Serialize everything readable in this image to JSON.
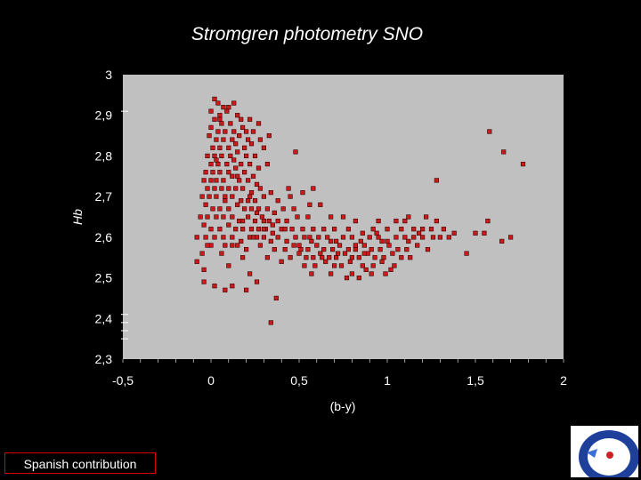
{
  "slide": {
    "title": "Stromgren photometry SNO",
    "credit": "Spanish contribution"
  },
  "colors": {
    "background": "#000000",
    "plot_area": "#c0c0c0",
    "marker_fill": "#cc1a1a",
    "marker_stroke": "#3a0000",
    "credit_border": "#dd0000"
  },
  "logo": {
    "name": "institute-seal"
  },
  "chart_data": {
    "type": "scatter",
    "title": "Stromgren photometry SNO",
    "xlabel": "(b-y)",
    "ylabel": "Hb",
    "xlim": [
      -0.5,
      2
    ],
    "ylim": [
      2.3,
      3
    ],
    "x_ticks": [
      "-0,5",
      "0",
      "0,5",
      "1",
      "1,5",
      "2"
    ],
    "y_ticks": [
      "3",
      "2,9",
      "2,8",
      "2,7",
      "2,6",
      "2,5",
      "2,4",
      "2,3"
    ],
    "grid": false,
    "legend": "none",
    "series": [
      {
        "points": [
          [
            0.02,
            2.94
          ],
          [
            0.04,
            2.93
          ],
          [
            0.07,
            2.92
          ],
          [
            0.13,
            2.93
          ],
          [
            0.0,
            2.91
          ],
          [
            0.05,
            2.9
          ],
          [
            0.09,
            2.91
          ],
          [
            0.15,
            2.9
          ],
          [
            0.02,
            2.89
          ],
          [
            0.06,
            2.88
          ],
          [
            0.11,
            2.88
          ],
          [
            0.17,
            2.89
          ],
          [
            0.22,
            2.89
          ],
          [
            0.27,
            2.88
          ],
          [
            0.0,
            2.87
          ],
          [
            0.04,
            2.86
          ],
          [
            0.08,
            2.86
          ],
          [
            0.13,
            2.86
          ],
          [
            0.18,
            2.87
          ],
          [
            0.24,
            2.86
          ],
          [
            -0.01,
            2.85
          ],
          [
            0.03,
            2.84
          ],
          [
            0.07,
            2.84
          ],
          [
            0.12,
            2.84
          ],
          [
            0.16,
            2.85
          ],
          [
            0.21,
            2.84
          ],
          [
            0.28,
            2.84
          ],
          [
            0.33,
            2.85
          ],
          [
            0.01,
            2.82
          ],
          [
            0.05,
            2.82
          ],
          [
            0.1,
            2.82
          ],
          [
            0.14,
            2.83
          ],
          [
            0.19,
            2.82
          ],
          [
            0.23,
            2.83
          ],
          [
            0.3,
            2.82
          ],
          [
            -0.02,
            2.8
          ],
          [
            0.02,
            2.8
          ],
          [
            0.06,
            2.8
          ],
          [
            0.11,
            2.8
          ],
          [
            0.15,
            2.81
          ],
          [
            0.2,
            2.8
          ],
          [
            0.25,
            2.8
          ],
          [
            0.0,
            2.78
          ],
          [
            0.04,
            2.78
          ],
          [
            0.09,
            2.78
          ],
          [
            0.13,
            2.79
          ],
          [
            0.17,
            2.78
          ],
          [
            0.22,
            2.78
          ],
          [
            0.27,
            2.77
          ],
          [
            0.32,
            2.78
          ],
          [
            -0.03,
            2.76
          ],
          [
            0.01,
            2.76
          ],
          [
            0.05,
            2.76
          ],
          [
            0.1,
            2.76
          ],
          [
            0.14,
            2.77
          ],
          [
            0.19,
            2.76
          ],
          [
            0.24,
            2.75
          ],
          [
            -0.04,
            2.74
          ],
          [
            0.0,
            2.74
          ],
          [
            0.03,
            2.74
          ],
          [
            0.07,
            2.74
          ],
          [
            0.12,
            2.75
          ],
          [
            0.16,
            2.74
          ],
          [
            0.21,
            2.74
          ],
          [
            0.26,
            2.73
          ],
          [
            -0.02,
            2.72
          ],
          [
            0.02,
            2.72
          ],
          [
            0.06,
            2.72
          ],
          [
            0.1,
            2.72
          ],
          [
            0.14,
            2.72
          ],
          [
            0.18,
            2.72
          ],
          [
            0.23,
            2.71
          ],
          [
            0.28,
            2.72
          ],
          [
            0.34,
            2.71
          ],
          [
            -0.05,
            2.7
          ],
          [
            -0.01,
            2.7
          ],
          [
            0.03,
            2.7
          ],
          [
            0.08,
            2.69
          ],
          [
            0.12,
            2.7
          ],
          [
            0.17,
            2.69
          ],
          [
            0.21,
            2.69
          ],
          [
            0.25,
            2.69
          ],
          [
            0.3,
            2.7
          ],
          [
            0.38,
            2.69
          ],
          [
            0.45,
            2.7
          ],
          [
            0.52,
            2.71
          ],
          [
            -0.03,
            2.68
          ],
          [
            0.01,
            2.67
          ],
          [
            0.05,
            2.67
          ],
          [
            0.1,
            2.67
          ],
          [
            0.15,
            2.68
          ],
          [
            0.19,
            2.67
          ],
          [
            0.23,
            2.67
          ],
          [
            0.27,
            2.67
          ],
          [
            0.32,
            2.67
          ],
          [
            0.36,
            2.66
          ],
          [
            0.41,
            2.67
          ],
          [
            0.47,
            2.67
          ],
          [
            0.56,
            2.68
          ],
          [
            0.62,
            2.68
          ],
          [
            -0.06,
            2.65
          ],
          [
            -0.02,
            2.65
          ],
          [
            0.03,
            2.65
          ],
          [
            0.07,
            2.65
          ],
          [
            0.12,
            2.65
          ],
          [
            0.16,
            2.64
          ],
          [
            0.21,
            2.65
          ],
          [
            0.25,
            2.64
          ],
          [
            0.29,
            2.65
          ],
          [
            0.33,
            2.64
          ],
          [
            0.38,
            2.64
          ],
          [
            0.43,
            2.64
          ],
          [
            0.49,
            2.65
          ],
          [
            0.55,
            2.65
          ],
          [
            0.68,
            2.65
          ],
          [
            0.75,
            2.65
          ],
          [
            0.82,
            2.64
          ],
          [
            0.95,
            2.64
          ],
          [
            1.05,
            2.64
          ],
          [
            1.12,
            2.65
          ],
          [
            1.22,
            2.65
          ],
          [
            1.28,
            2.64
          ],
          [
            -0.04,
            2.63
          ],
          [
            0.0,
            2.62
          ],
          [
            0.05,
            2.62
          ],
          [
            0.1,
            2.63
          ],
          [
            0.14,
            2.62
          ],
          [
            0.18,
            2.62
          ],
          [
            0.23,
            2.62
          ],
          [
            0.27,
            2.62
          ],
          [
            0.31,
            2.62
          ],
          [
            0.35,
            2.61
          ],
          [
            0.4,
            2.62
          ],
          [
            0.46,
            2.62
          ],
          [
            0.52,
            2.62
          ],
          [
            0.58,
            2.62
          ],
          [
            0.64,
            2.62
          ],
          [
            0.7,
            2.62
          ],
          [
            0.78,
            2.62
          ],
          [
            0.86,
            2.61
          ],
          [
            0.92,
            2.62
          ],
          [
            1.0,
            2.62
          ],
          [
            1.08,
            2.62
          ],
          [
            1.15,
            2.62
          ],
          [
            1.2,
            2.62
          ],
          [
            1.25,
            2.62
          ],
          [
            1.32,
            2.62
          ],
          [
            -0.08,
            2.6
          ],
          [
            -0.03,
            2.6
          ],
          [
            0.02,
            2.6
          ],
          [
            0.07,
            2.6
          ],
          [
            0.12,
            2.6
          ],
          [
            0.17,
            2.59
          ],
          [
            0.22,
            2.6
          ],
          [
            0.26,
            2.6
          ],
          [
            0.3,
            2.6
          ],
          [
            0.34,
            2.59
          ],
          [
            0.38,
            2.6
          ],
          [
            0.43,
            2.59
          ],
          [
            0.48,
            2.6
          ],
          [
            0.53,
            2.6
          ],
          [
            0.57,
            2.59
          ],
          [
            0.61,
            2.6
          ],
          [
            0.66,
            2.6
          ],
          [
            0.71,
            2.59
          ],
          [
            0.75,
            2.6
          ],
          [
            0.8,
            2.6
          ],
          [
            0.85,
            2.59
          ],
          [
            0.9,
            2.6
          ],
          [
            0.95,
            2.6
          ],
          [
            1.0,
            2.59
          ],
          [
            1.05,
            2.6
          ],
          [
            1.1,
            2.6
          ],
          [
            1.15,
            2.6
          ],
          [
            1.2,
            2.6
          ],
          [
            1.26,
            2.6
          ],
          [
            1.35,
            2.6
          ],
          [
            1.55,
            2.61
          ],
          [
            0.0,
            2.58
          ],
          [
            0.08,
            2.58
          ],
          [
            0.15,
            2.58
          ],
          [
            0.2,
            2.57
          ],
          [
            0.28,
            2.58
          ],
          [
            0.36,
            2.57
          ],
          [
            0.42,
            2.57
          ],
          [
            0.47,
            2.58
          ],
          [
            0.51,
            2.57
          ],
          [
            0.55,
            2.57
          ],
          [
            0.6,
            2.58
          ],
          [
            0.64,
            2.57
          ],
          [
            0.69,
            2.57
          ],
          [
            0.73,
            2.58
          ],
          [
            0.78,
            2.57
          ],
          [
            0.82,
            2.57
          ],
          [
            0.87,
            2.58
          ],
          [
            0.91,
            2.57
          ],
          [
            0.96,
            2.57
          ],
          [
            1.01,
            2.58
          ],
          [
            1.06,
            2.57
          ],
          [
            1.11,
            2.57
          ],
          [
            1.17,
            2.58
          ],
          [
            1.23,
            2.57
          ],
          [
            1.65,
            2.59
          ],
          [
            -0.05,
            2.56
          ],
          [
            0.06,
            2.56
          ],
          [
            0.18,
            2.55
          ],
          [
            0.32,
            2.55
          ],
          [
            0.45,
            2.55
          ],
          [
            0.5,
            2.56
          ],
          [
            0.54,
            2.55
          ],
          [
            0.58,
            2.55
          ],
          [
            0.62,
            2.56
          ],
          [
            0.67,
            2.55
          ],
          [
            0.71,
            2.55
          ],
          [
            0.76,
            2.56
          ],
          [
            0.8,
            2.55
          ],
          [
            0.84,
            2.55
          ],
          [
            0.89,
            2.56
          ],
          [
            0.93,
            2.55
          ],
          [
            0.98,
            2.55
          ],
          [
            1.03,
            2.56
          ],
          [
            1.08,
            2.55
          ],
          [
            1.13,
            2.55
          ],
          [
            1.45,
            2.56
          ],
          [
            -0.08,
            2.54
          ],
          [
            0.1,
            2.53
          ],
          [
            0.4,
            2.54
          ],
          [
            0.53,
            2.53
          ],
          [
            0.59,
            2.53
          ],
          [
            0.65,
            2.54
          ],
          [
            0.7,
            2.53
          ],
          [
            0.74,
            2.53
          ],
          [
            0.79,
            2.54
          ],
          [
            0.86,
            2.53
          ],
          [
            0.92,
            2.53
          ],
          [
            0.97,
            2.54
          ],
          [
            1.04,
            2.53
          ],
          [
            -0.04,
            2.52
          ],
          [
            0.22,
            2.51
          ],
          [
            0.57,
            2.51
          ],
          [
            0.68,
            2.51
          ],
          [
            0.8,
            2.51
          ],
          [
            0.88,
            2.52
          ],
          [
            0.99,
            2.51
          ],
          [
            1.02,
            2.52
          ],
          [
            0.77,
            2.5
          ],
          [
            0.84,
            2.5
          ],
          [
            0.91,
            2.51
          ],
          [
            -0.04,
            2.49
          ],
          [
            0.26,
            2.49
          ],
          [
            0.08,
            2.47
          ],
          [
            0.37,
            2.45
          ],
          [
            0.34,
            2.39
          ],
          [
            1.58,
            2.86
          ],
          [
            1.66,
            2.81
          ],
          [
            1.77,
            2.78
          ],
          [
            1.28,
            2.74
          ],
          [
            0.48,
            2.81
          ],
          [
            1.57,
            2.64
          ],
          [
            1.7,
            2.6
          ],
          [
            1.1,
            2.64
          ],
          [
            1.5,
            2.61
          ],
          [
            0.02,
            2.48
          ],
          [
            0.2,
            2.47
          ],
          [
            0.12,
            2.48
          ],
          [
            0.3,
            2.62
          ],
          [
            0.44,
            2.72
          ],
          [
            0.58,
            2.72
          ],
          [
            0.35,
            2.63
          ],
          [
            0.05,
            2.89
          ],
          [
            0.1,
            2.92
          ],
          [
            0.2,
            2.86
          ],
          [
            0.03,
            2.79
          ],
          [
            0.15,
            2.75
          ],
          [
            0.08,
            2.7
          ],
          [
            0.22,
            2.7
          ],
          [
            0.26,
            2.66
          ],
          [
            0.18,
            2.64
          ],
          [
            0.3,
            2.64
          ],
          [
            0.12,
            2.58
          ],
          [
            0.24,
            2.6
          ],
          [
            -0.02,
            2.58
          ],
          [
            0.42,
            2.62
          ],
          [
            0.5,
            2.58
          ],
          [
            0.63,
            2.55
          ],
          [
            0.72,
            2.56
          ],
          [
            0.82,
            2.58
          ],
          [
            0.94,
            2.61
          ],
          [
            1.18,
            2.61
          ],
          [
            1.3,
            2.6
          ],
          [
            1.38,
            2.61
          ],
          [
            1.12,
            2.59
          ],
          [
            0.97,
            2.59
          ],
          [
            0.87,
            2.56
          ],
          [
            0.68,
            2.59
          ],
          [
            0.56,
            2.6
          ]
        ]
      }
    ]
  }
}
